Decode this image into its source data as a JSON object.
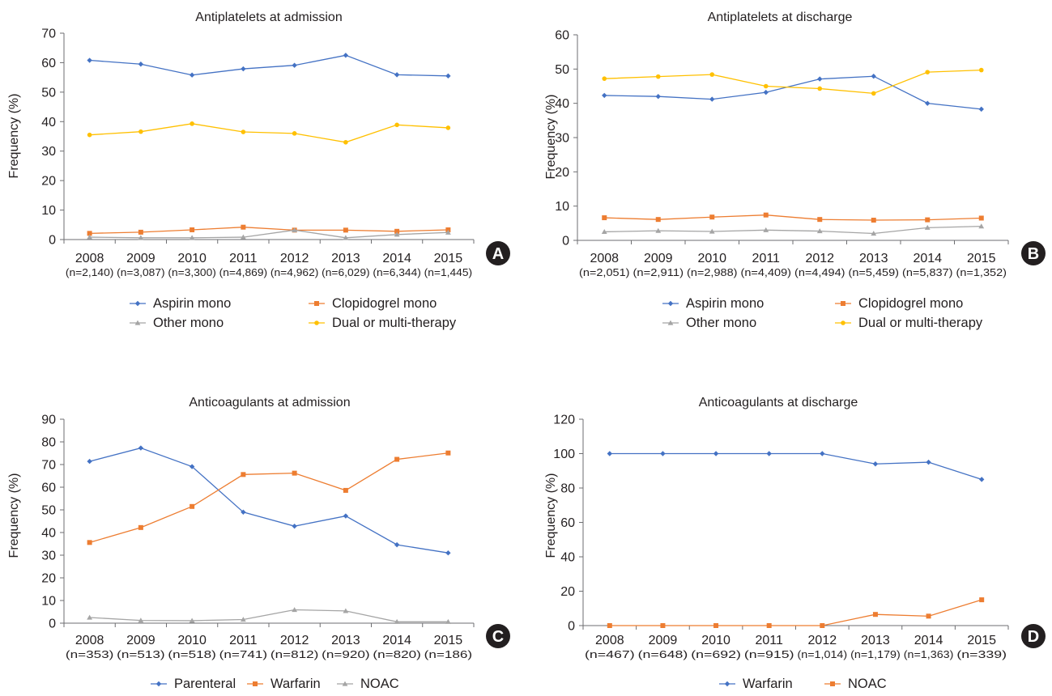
{
  "chart_data": [
    {
      "type": "line",
      "panel": "A",
      "title": "Antiplatelets at admission",
      "ylabel": "Frequency (%)",
      "ylim": [
        0,
        70
      ],
      "yticks": [
        0,
        10,
        20,
        30,
        40,
        50,
        60,
        70
      ],
      "categories": [
        "2008",
        "2009",
        "2010",
        "2011",
        "2012",
        "2013",
        "2014",
        "2015"
      ],
      "n_labels": [
        "(n=2,140)",
        "(n=3,087)",
        "(n=3,300)",
        "(n=4,869)",
        "(n=4,962)",
        "(n=6,029)",
        "(n=6,344)",
        "(n=1,445)"
      ],
      "legend_position": "bottom",
      "legend_columns": 2,
      "series": [
        {
          "name": "Aspirin mono",
          "color": "#4472c4",
          "marker": "diamond",
          "values": [
            60.8,
            59.5,
            55.8,
            57.9,
            59.1,
            62.5,
            55.9,
            55.5
          ]
        },
        {
          "name": "Clopidogrel mono",
          "color": "#ed7d31",
          "marker": "square",
          "values": [
            2.1,
            2.5,
            3.3,
            4.2,
            3.2,
            3.2,
            2.8,
            3.3
          ]
        },
        {
          "name": "Other mono",
          "color": "#a5a5a5",
          "marker": "triangle",
          "values": [
            0.8,
            0.6,
            0.6,
            0.8,
            3.2,
            0.6,
            1.7,
            2.4
          ]
        },
        {
          "name": "Dual or multi-therapy",
          "color": "#ffc000",
          "marker": "circle",
          "values": [
            35.5,
            36.6,
            39.3,
            36.5,
            36.0,
            33.0,
            38.9,
            37.9
          ]
        }
      ]
    },
    {
      "type": "line",
      "panel": "B",
      "title": "Antiplatelets at discharge",
      "ylabel": "Frequency (%)",
      "ylim": [
        0,
        60
      ],
      "yticks": [
        0,
        10,
        20,
        30,
        40,
        50,
        60
      ],
      "categories": [
        "2008",
        "2009",
        "2010",
        "2011",
        "2012",
        "2013",
        "2014",
        "2015"
      ],
      "n_labels": [
        "(n=2,051)",
        "(n=2,911)",
        "(n=2,988)",
        "(n=4,409)",
        "(n=4,494)",
        "(n=5,459)",
        "(n=5,837)",
        "(n=1,352)"
      ],
      "legend_position": "bottom",
      "legend_columns": 2,
      "series": [
        {
          "name": "Aspirin mono",
          "color": "#4472c4",
          "marker": "diamond",
          "values": [
            42.3,
            42.0,
            41.2,
            43.2,
            47.1,
            47.9,
            40.0,
            38.3
          ]
        },
        {
          "name": "Clopidogrel mono",
          "color": "#ed7d31",
          "marker": "square",
          "values": [
            6.6,
            6.1,
            6.8,
            7.4,
            6.1,
            5.9,
            6.0,
            6.5
          ]
        },
        {
          "name": "Other mono",
          "color": "#a5a5a5",
          "marker": "triangle",
          "values": [
            2.5,
            2.8,
            2.6,
            3.0,
            2.7,
            2.0,
            3.7,
            4.1
          ]
        },
        {
          "name": "Dual or multi-therapy",
          "color": "#ffc000",
          "marker": "circle",
          "values": [
            47.2,
            47.8,
            48.4,
            45.0,
            44.3,
            42.9,
            49.1,
            49.7
          ]
        }
      ]
    },
    {
      "type": "line",
      "panel": "C",
      "title": "Anticoagulants at admission",
      "ylabel": "Frequency (%)",
      "ylim": [
        0,
        90
      ],
      "yticks": [
        0,
        10,
        20,
        30,
        40,
        50,
        60,
        70,
        80,
        90
      ],
      "categories": [
        "2008",
        "2009",
        "2010",
        "2011",
        "2012",
        "2013",
        "2014",
        "2015"
      ],
      "n_labels": [
        "(n=353)",
        "(n=513)",
        "(n=518)",
        "(n=741)",
        "(n=812)",
        "(n=920)",
        "(n=820)",
        "(n=186)"
      ],
      "legend_position": "bottom",
      "legend_columns": 3,
      "series": [
        {
          "name": "Parenteral",
          "color": "#4472c4",
          "marker": "diamond",
          "values": [
            71.4,
            77.3,
            69.1,
            49.0,
            42.8,
            47.3,
            34.6,
            31.0
          ]
        },
        {
          "name": "Warfarin",
          "color": "#ed7d31",
          "marker": "square",
          "values": [
            35.6,
            42.2,
            51.5,
            65.6,
            66.2,
            58.6,
            72.3,
            75.1
          ]
        },
        {
          "name": "NOAC",
          "color": "#a5a5a5",
          "marker": "triangle",
          "values": [
            2.5,
            1.2,
            1.1,
            1.6,
            5.9,
            5.4,
            0.6,
            0.6
          ]
        }
      ]
    },
    {
      "type": "line",
      "panel": "D",
      "title": "Anticoagulants at discharge",
      "ylabel": "Frequency (%)",
      "ylim": [
        0,
        120
      ],
      "yticks": [
        0,
        20,
        40,
        60,
        80,
        100,
        120
      ],
      "categories": [
        "2008",
        "2009",
        "2010",
        "2011",
        "2012",
        "2013",
        "2014",
        "2015"
      ],
      "n_labels": [
        "(n=467)",
        "(n=648)",
        "(n=692)",
        "(n=915)",
        "(n=1,014)",
        "(n=1,179)",
        "(n=1,363)",
        "(n=339)"
      ],
      "legend_position": "bottom",
      "legend_columns": 2,
      "series": [
        {
          "name": "Warfarin",
          "color": "#4472c4",
          "marker": "diamond",
          "values": [
            100,
            100,
            100,
            100,
            100,
            94,
            95,
            85
          ]
        },
        {
          "name": "NOAC",
          "color": "#ed7d31",
          "marker": "square",
          "values": [
            0,
            0,
            0,
            0,
            0,
            6.5,
            5.5,
            15
          ]
        }
      ]
    }
  ]
}
